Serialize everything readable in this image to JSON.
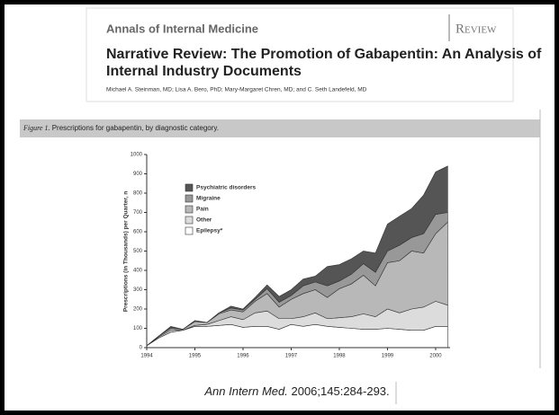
{
  "journal": "Annals of Internal Medicine",
  "section": "Review",
  "article_title": [
    "Narrative Review: The Promotion of Gabapentin: An Analysis of",
    "Internal Industry Documents"
  ],
  "authors": "Michael A. Steinman, MD; Lisa A. Bero, PhD; Mary-Margaret Chren, MD; and C. Seth Landefeld, MD",
  "figure_label": "Figure 1.",
  "figure_caption": "Prescriptions for gabapentin, by diagnostic category.",
  "citation_journal": "Ann Intern Med.",
  "citation_ref": "2006;145:284-293.",
  "chart_data": {
    "type": "stacked_area",
    "y_label": "Prescriptions (in Thousands) per Quarter, n",
    "x": [
      1994,
      1994.25,
      1994.5,
      1994.75,
      1995,
      1995.25,
      1995.5,
      1995.75,
      1996,
      1996.25,
      1996.5,
      1996.75,
      1997,
      1997.25,
      1997.5,
      1997.75,
      1998,
      1998.25,
      1998.5,
      1998.75,
      1999,
      1999.25,
      1999.5,
      1999.75,
      2000,
      2000.25
    ],
    "xlim": [
      1994,
      2000.3
    ],
    "xticks": [
      1994,
      1995,
      1996,
      1997,
      1998,
      1999,
      2000
    ],
    "ylim": [
      0,
      1000
    ],
    "yticks": [
      0,
      100,
      200,
      300,
      400,
      500,
      600,
      700,
      800,
      900,
      1000
    ],
    "series": [
      {
        "name": "Epilepsy*",
        "color": "#ffffff",
        "values": [
          10,
          50,
          80,
          90,
          110,
          110,
          115,
          120,
          105,
          110,
          110,
          95,
          120,
          110,
          120,
          110,
          105,
          100,
          95,
          95,
          100,
          95,
          90,
          90,
          110,
          110
        ]
      },
      {
        "name": "Other",
        "color": "#dcdcdc",
        "values": [
          0,
          5,
          10,
          0,
          5,
          10,
          25,
          40,
          40,
          70,
          80,
          55,
          30,
          50,
          60,
          40,
          50,
          60,
          80,
          65,
          100,
          85,
          110,
          120,
          130,
          110
        ]
      },
      {
        "name": "Pain",
        "color": "#b8b8b8",
        "values": [
          0,
          5,
          10,
          5,
          20,
          10,
          35,
          35,
          40,
          60,
          90,
          60,
          100,
          120,
          120,
          110,
          150,
          170,
          200,
          160,
          240,
          270,
          300,
          280,
          350,
          430
        ]
      },
      {
        "name": "Migraine",
        "color": "#989898",
        "values": [
          0,
          0,
          0,
          0,
          5,
          0,
          5,
          10,
          10,
          10,
          25,
          25,
          20,
          40,
          40,
          60,
          40,
          50,
          60,
          70,
          60,
          80,
          70,
          100,
          100,
          50
        ]
      },
      {
        "name": "Psychiatric disorders",
        "color": "#555555",
        "values": [
          0,
          0,
          10,
          0,
          0,
          0,
          0,
          10,
          5,
          10,
          20,
          30,
          30,
          35,
          30,
          100,
          85,
          80,
          65,
          100,
          140,
          150,
          150,
          200,
          220,
          240
        ]
      }
    ]
  }
}
